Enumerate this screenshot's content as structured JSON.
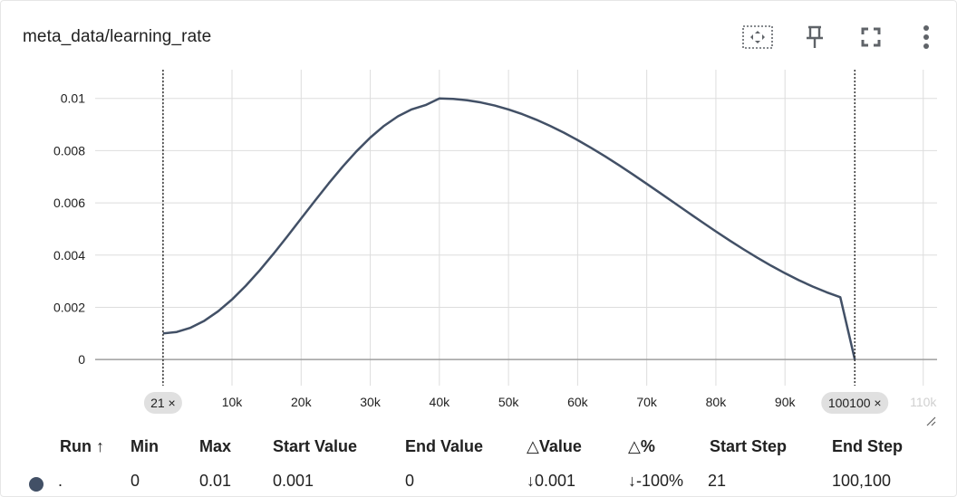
{
  "card": {
    "title": "meta_data/learning_rate",
    "toolbar": {
      "fit_icon": "fit-domain-icon",
      "pin_icon": "pin-icon",
      "fullscreen_icon": "fullscreen-icon",
      "more_icon": "more-vert-icon"
    }
  },
  "chart_data": {
    "type": "line",
    "ylim": [
      -0.001,
      0.0111
    ],
    "xlim": [
      -9800,
      112000
    ],
    "yticks": [
      {
        "v": 0,
        "label": "0"
      },
      {
        "v": 0.002,
        "label": "0.002"
      },
      {
        "v": 0.004,
        "label": "0.004"
      },
      {
        "v": 0.006,
        "label": "0.006"
      },
      {
        "v": 0.008,
        "label": "0.008"
      },
      {
        "v": 0.01,
        "label": "0.01"
      }
    ],
    "xticks": [
      {
        "v": 0,
        "label": "0k"
      },
      {
        "v": 10000,
        "label": "10k"
      },
      {
        "v": 20000,
        "label": "20k"
      },
      {
        "v": 30000,
        "label": "30k"
      },
      {
        "v": 40000,
        "label": "40k"
      },
      {
        "v": 50000,
        "label": "50k"
      },
      {
        "v": 60000,
        "label": "60k"
      },
      {
        "v": 70000,
        "label": "70k"
      },
      {
        "v": 80000,
        "label": "80k"
      },
      {
        "v": 90000,
        "label": "90k"
      },
      {
        "v": 110000,
        "label": "110k"
      }
    ],
    "range_markers": [
      {
        "v": 21,
        "label": "21 ×"
      },
      {
        "v": 100100,
        "label": "100100 ×"
      }
    ],
    "grid": true,
    "series": [
      {
        "color": "#425066",
        "x": [
          21,
          2000,
          4000,
          6000,
          8000,
          10000,
          12000,
          14000,
          16000,
          18000,
          20000,
          22000,
          24000,
          26000,
          28000,
          30000,
          32000,
          34000,
          36000,
          38000,
          40000,
          42000,
          44000,
          46000,
          48000,
          50000,
          52000,
          54000,
          56000,
          58000,
          60000,
          62000,
          64000,
          66000,
          68000,
          70000,
          72000,
          74000,
          76000,
          78000,
          80000,
          82000,
          84000,
          86000,
          88000,
          90000,
          92000,
          94000,
          96000,
          98000,
          100100
        ],
        "y": [
          0.001,
          0.001055,
          0.001218,
          0.001485,
          0.001849,
          0.0023,
          0.002827,
          0.003415,
          0.00405,
          0.004717,
          0.0054,
          0.006083,
          0.00675,
          0.007385,
          0.007973,
          0.0085,
          0.008951,
          0.009315,
          0.009582,
          0.009745,
          0.01,
          0.009983,
          0.009931,
          0.009846,
          0.009728,
          0.009578,
          0.009397,
          0.009188,
          0.008951,
          0.00869,
          0.008405,
          0.0081,
          0.007777,
          0.007439,
          0.007089,
          0.00673,
          0.006365,
          0.005998,
          0.00563,
          0.005266,
          0.004908,
          0.004559,
          0.004222,
          0.003899,
          0.003593,
          0.003306,
          0.00304,
          0.002797,
          0.002579,
          0.002387,
          0.0
        ]
      }
    ]
  },
  "table": {
    "headers": {
      "run": "Run ↑",
      "min": "Min",
      "max": "Max",
      "start_value": "Start Value",
      "end_value": "End Value",
      "delta_value": "△Value",
      "delta_pct": "△%",
      "start_step": "Start Step",
      "end_step": "End Step"
    },
    "row": {
      "run_color": "#425066",
      "run": ".",
      "min": "0",
      "max": "0.01",
      "start_value": "0.001",
      "end_value": "0",
      "delta_value": "↓0.001",
      "delta_pct": "↓-100%",
      "start_step": "21",
      "end_step": "100,100"
    }
  }
}
